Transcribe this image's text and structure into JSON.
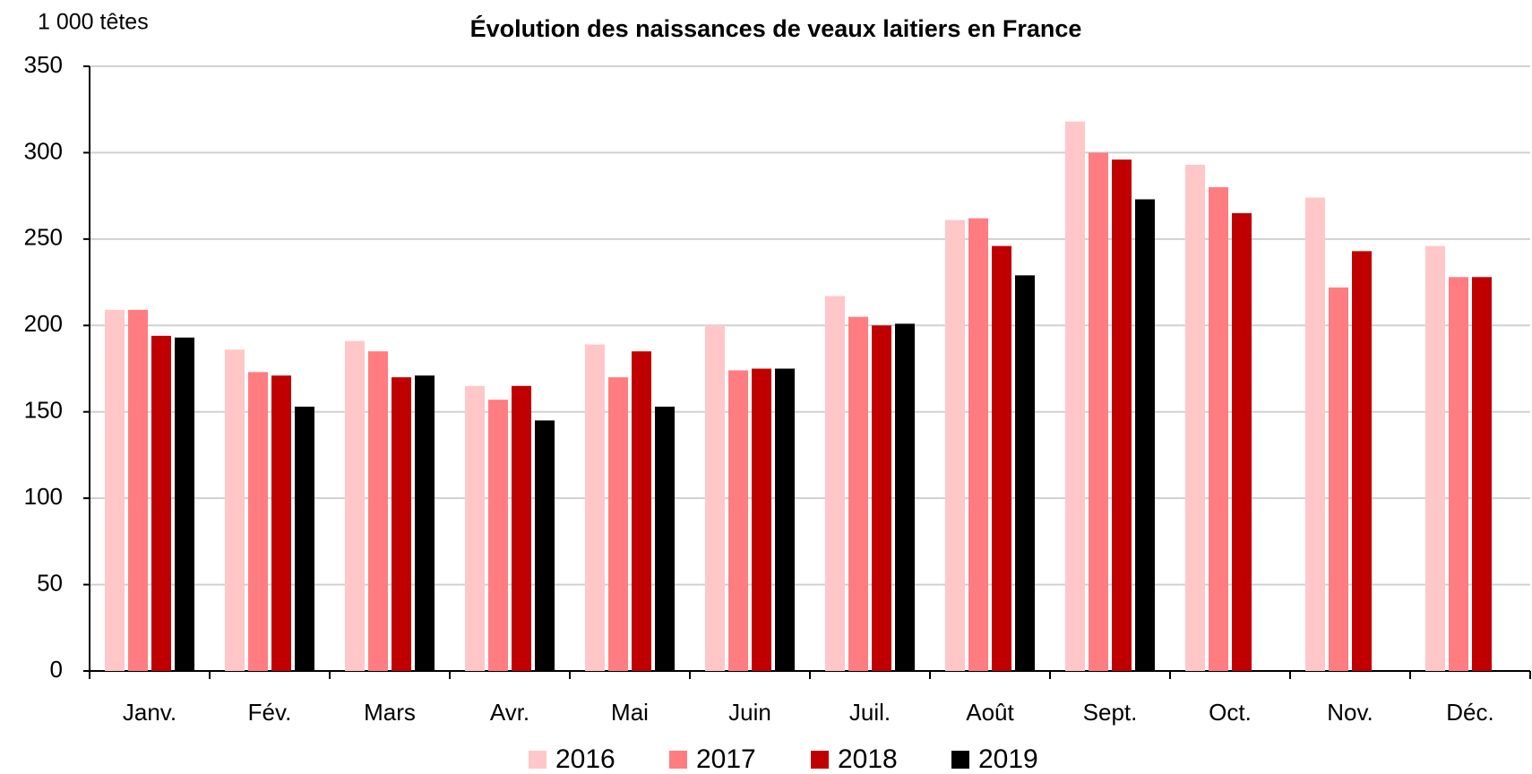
{
  "chart_data": {
    "type": "bar",
    "title": "Évolution des naissances de veaux laitiers en France",
    "y_label": "1 000 têtes",
    "categories": [
      "Janv.",
      "Fév.",
      "Mars",
      "Avr.",
      "Mai",
      "Juin",
      "Juil.",
      "Août",
      "Sept.",
      "Oct.",
      "Nov.",
      "Déc."
    ],
    "series": [
      {
        "name": "2016",
        "color": "#ffc7c7",
        "values": [
          209,
          186,
          191,
          165,
          189,
          200,
          217,
          261,
          318,
          293,
          274,
          246
        ]
      },
      {
        "name": "2017",
        "color": "#ff7c80",
        "values": [
          209,
          173,
          185,
          157,
          170,
          174,
          205,
          262,
          300,
          280,
          222,
          228
        ]
      },
      {
        "name": "2018",
        "color": "#c00000",
        "values": [
          194,
          171,
          170,
          165,
          185,
          175,
          200,
          246,
          296,
          265,
          243,
          228
        ]
      },
      {
        "name": "2019",
        "color": "#000000",
        "values": [
          193,
          153,
          171,
          145,
          153,
          175,
          201,
          229,
          273,
          null,
          null,
          null
        ]
      }
    ],
    "ylim": [
      0,
      350
    ],
    "yticks": [
      0,
      50,
      100,
      150,
      200,
      250,
      300,
      350
    ],
    "grid": true,
    "legend": "bottom"
  }
}
